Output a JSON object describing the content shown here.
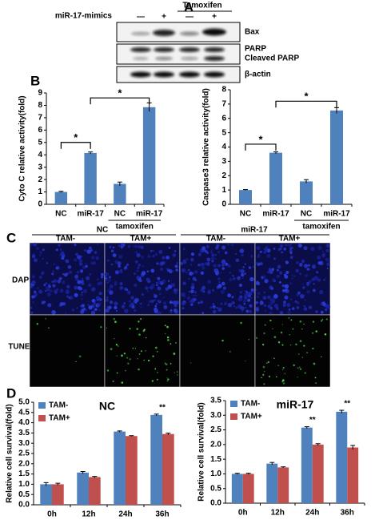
{
  "blot": {
    "panel": "A",
    "treatment_label": "miR-17-mimics",
    "group_label": "Tamoxifen",
    "lanes": [
      "—",
      "+",
      "—",
      "+"
    ],
    "bands": [
      "Bax",
      "PARP",
      "Cleaved PARP",
      "β-actin"
    ]
  },
  "microscopy": {
    "panel": "C",
    "groups": [
      "NC",
      "miR-17"
    ],
    "columns": [
      "TAM-",
      "TAM+",
      "TAM-",
      "TAM+"
    ],
    "rows": [
      "DAPI",
      "TUNEL"
    ]
  },
  "chart_data": [
    {
      "type": "bar",
      "panel": "B",
      "ylabel": "Cyto C relative activity(fold)",
      "categories": [
        "NC",
        "miR-17",
        "NC",
        "miR-17"
      ],
      "values": [
        1.0,
        4.15,
        1.65,
        7.85
      ],
      "errors": [
        0.05,
        0.08,
        0.15,
        0.35
      ],
      "color": "#4f81bd",
      "ylim": [
        0,
        9
      ],
      "yticks": [
        0,
        1,
        2,
        3,
        4,
        5,
        6,
        7,
        8,
        9
      ],
      "group_label": "tamoxifen",
      "annotations": [
        "*",
        "*"
      ]
    },
    {
      "type": "bar",
      "ylabel": "Caspase3 relative activity(fold)",
      "categories": [
        "NC",
        "miR-17",
        "NC",
        "miR-17"
      ],
      "values": [
        1.0,
        3.6,
        1.6,
        6.55
      ],
      "errors": [
        0.03,
        0.06,
        0.12,
        0.2
      ],
      "color": "#4f81bd",
      "ylim": [
        0,
        8
      ],
      "yticks": [
        0,
        1,
        2,
        3,
        4,
        5,
        6,
        7,
        8
      ],
      "group_label": "tamoxifen",
      "annotations": [
        "*",
        "*"
      ]
    },
    {
      "type": "bar",
      "panel": "D",
      "title": "NC",
      "ylabel": "Relative cell survival(fold)",
      "categories": [
        "0h",
        "12h",
        "24h",
        "36h"
      ],
      "series": [
        {
          "name": "TAM-",
          "color": "#4f81bd",
          "values": [
            1.0,
            1.57,
            3.57,
            4.38
          ],
          "errors": [
            0.08,
            0.05,
            0.03,
            0.04
          ]
        },
        {
          "name": "TAM+",
          "color": "#c0504d",
          "values": [
            1.0,
            1.35,
            3.35,
            3.45
          ],
          "errors": [
            0.05,
            0.03,
            0.02,
            0.04
          ]
        }
      ],
      "ylim": [
        0,
        5
      ],
      "yticks": [
        {
          "value": 0,
          "label": "0.0"
        },
        0.5,
        {
          "value": 1,
          "label": "1.0"
        },
        1.5,
        {
          "value": 2,
          "label": "2.0"
        },
        2.5,
        {
          "value": 3,
          "label": "3.0"
        },
        3.5,
        {
          "value": 4,
          "label": "4.0"
        },
        4.5,
        {
          "value": 5,
          "label": "5.0"
        }
      ],
      "legend": "upper left",
      "annotations": [
        "**"
      ]
    },
    {
      "type": "bar",
      "title": "miR-17",
      "ylabel": "Relative cell survival(fold)",
      "categories": [
        "0h",
        "12h",
        "24h",
        "36h"
      ],
      "series": [
        {
          "name": "TAM-",
          "color": "#4f81bd",
          "values": [
            1.0,
            1.35,
            2.58,
            3.12
          ],
          "errors": [
            0.02,
            0.04,
            0.03,
            0.05
          ]
        },
        {
          "name": "TAM+",
          "color": "#c0504d",
          "values": [
            1.0,
            1.22,
            2.0,
            1.9
          ],
          "errors": [
            0.02,
            0.02,
            0.03,
            0.07
          ]
        }
      ],
      "ylim": [
        0,
        3.5
      ],
      "yticks": [
        {
          "value": 0,
          "label": "0.0"
        },
        0.5,
        {
          "value": 1,
          "label": "1.0"
        },
        1.5,
        {
          "value": 2,
          "label": "2.0"
        },
        2.5,
        {
          "value": 3,
          "label": "3.0"
        },
        3.5
      ],
      "legend": "upper left",
      "annotations": [
        "**",
        "**"
      ]
    }
  ]
}
